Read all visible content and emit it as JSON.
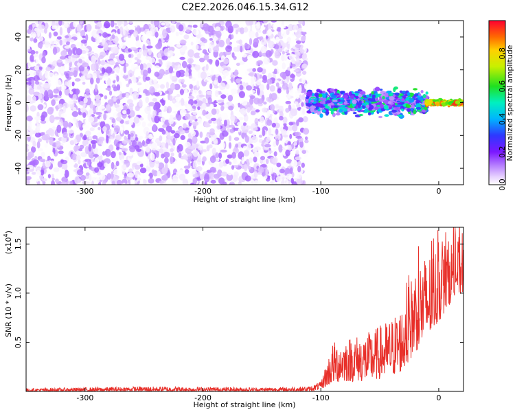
{
  "title": "C2E2.2026.046.15.34.G12",
  "chart_data": [
    {
      "type": "heatmap",
      "xlabel": "Height of straight line (km)",
      "ylabel": "Frequency (Hz)",
      "xlim": [
        -350,
        21
      ],
      "ylim": [
        -50,
        50
      ],
      "xticks": [
        -300,
        -200,
        -100,
        0
      ],
      "xtick_labels": [
        "-300",
        "-200",
        "-100",
        "0"
      ],
      "yticks": [
        -40,
        -20,
        0,
        20,
        40
      ],
      "ytick_labels": [
        "-40",
        "-20",
        "0",
        "20",
        "40"
      ],
      "colorbar": {
        "label": "Normalized spectral amplitude",
        "range": [
          0,
          1
        ],
        "ticks": [
          0.0,
          0.2,
          0.4,
          0.6,
          0.8
        ],
        "tick_labels": [
          "0.0",
          "0.2",
          "0.4",
          "0.6",
          "0.8"
        ],
        "colormap": "rainbow"
      },
      "description_regions": [
        {
          "x_range": [
            -350,
            -112
          ],
          "freq_range": [
            -50,
            50
          ],
          "amplitude_range": [
            0.0,
            0.15
          ],
          "note": "broadband noise"
        },
        {
          "x_range": [
            -112,
            -10
          ],
          "freq_range": [
            -10,
            10
          ],
          "amplitude_range": [
            0.1,
            0.6
          ]
        },
        {
          "x_range": [
            -10,
            21
          ],
          "freq_range": [
            -2,
            2
          ],
          "amplitude_range": [
            0.6,
            1.0
          ]
        }
      ]
    },
    {
      "type": "line",
      "xlabel": "Height of straight line (km)",
      "ylabel": "SNR (10 * v/v)",
      "y_multiplier": "(x10^4)",
      "y_multiplier_base": "(x10",
      "y_multiplier_exp": "4",
      "y_multiplier_close": ")",
      "xlim": [
        -350,
        21
      ],
      "ylim": [
        0,
        1.67
      ],
      "xticks": [
        -300,
        -200,
        -100,
        0
      ],
      "xtick_labels": [
        "-300",
        "-200",
        "-100",
        "0"
      ],
      "yticks": [
        0.5,
        1.0,
        1.5
      ],
      "ytick_labels": [
        "0.5",
        "1.0",
        "1.5"
      ],
      "series": [
        {
          "name": "SNR",
          "color": "#e8302a",
          "envelope_x": [
            -350,
            -250,
            -150,
            -110,
            -100,
            -95,
            -90,
            -80,
            -60,
            -40,
            -30,
            -20,
            -10,
            0,
            10,
            21
          ],
          "envelope_low": [
            0.0,
            0.0,
            0.0,
            0.0,
            0.02,
            0.05,
            0.08,
            0.1,
            0.1,
            0.15,
            0.2,
            0.4,
            0.5,
            0.7,
            0.9,
            1.0
          ],
          "envelope_high": [
            0.03,
            0.05,
            0.04,
            0.05,
            0.1,
            0.3,
            0.5,
            0.55,
            0.6,
            0.75,
            0.9,
            1.3,
            1.4,
            1.5,
            1.55,
            1.6
          ]
        }
      ]
    }
  ]
}
